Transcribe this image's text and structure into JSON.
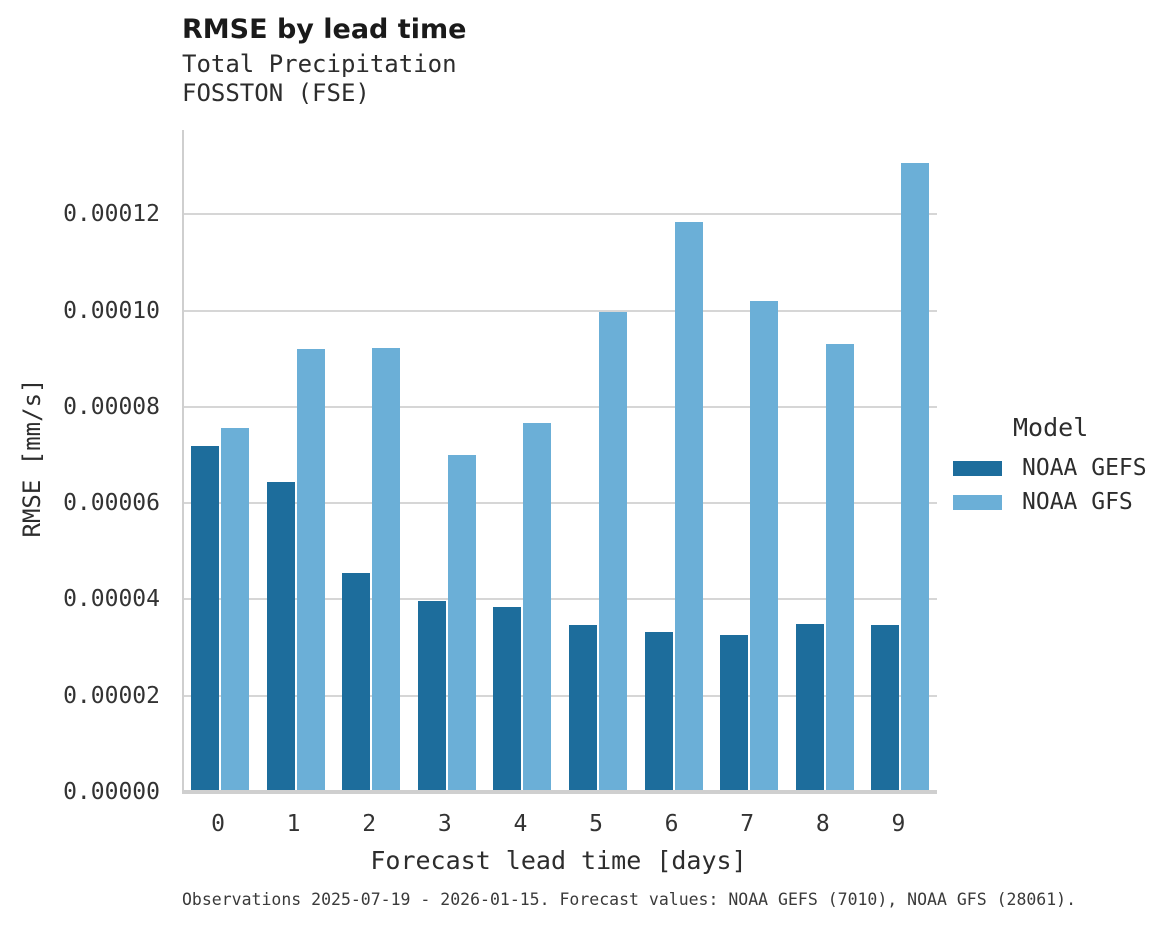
{
  "chart_data": {
    "type": "bar",
    "title": "RMSE by lead time",
    "subtitle_line1": "Total Precipitation",
    "subtitle_line2": "FOSSTON (FSE)",
    "xlabel": "Forecast lead time [days]",
    "ylabel": "RMSE [mm/s]",
    "categories": [
      "0",
      "1",
      "2",
      "3",
      "4",
      "5",
      "6",
      "7",
      "8",
      "9"
    ],
    "series": [
      {
        "name": "NOAA GEFS",
        "color": "#1d6d9c",
        "values": [
          7.19e-05,
          6.43e-05,
          4.54e-05,
          3.96e-05,
          3.85e-05,
          3.47e-05,
          3.33e-05,
          3.27e-05,
          3.5e-05,
          3.46e-05
        ]
      },
      {
        "name": "NOAA GFS",
        "color": "#6bafd7",
        "values": [
          7.57e-05,
          9.21e-05,
          9.23e-05,
          7.01e-05,
          7.67e-05,
          9.98e-05,
          0.0001184,
          0.000102,
          9.3e-05,
          0.0001307
        ]
      }
    ],
    "ylim": [
      0,
      0.0001375
    ],
    "yticks": [
      0,
      2e-05,
      4e-05,
      6e-05,
      8e-05,
      0.0001,
      0.00012
    ],
    "ytick_labels": [
      "0.00000",
      "0.00002",
      "0.00004",
      "0.00006",
      "0.00008",
      "0.00010",
      "0.00012"
    ],
    "grid": "horizontal-major",
    "legend_title": "Model",
    "legend_position": "right",
    "caption": "Observations 2025-07-19 - 2026-01-15. Forecast values: NOAA GEFS (7010), NOAA GFS (28061).",
    "colors": {
      "gefs_bar": "#1d6d9c",
      "gfs_bar": "#6bafd7",
      "gridline": "#d6d6d6",
      "axis_line": "#cfcfcf"
    }
  }
}
